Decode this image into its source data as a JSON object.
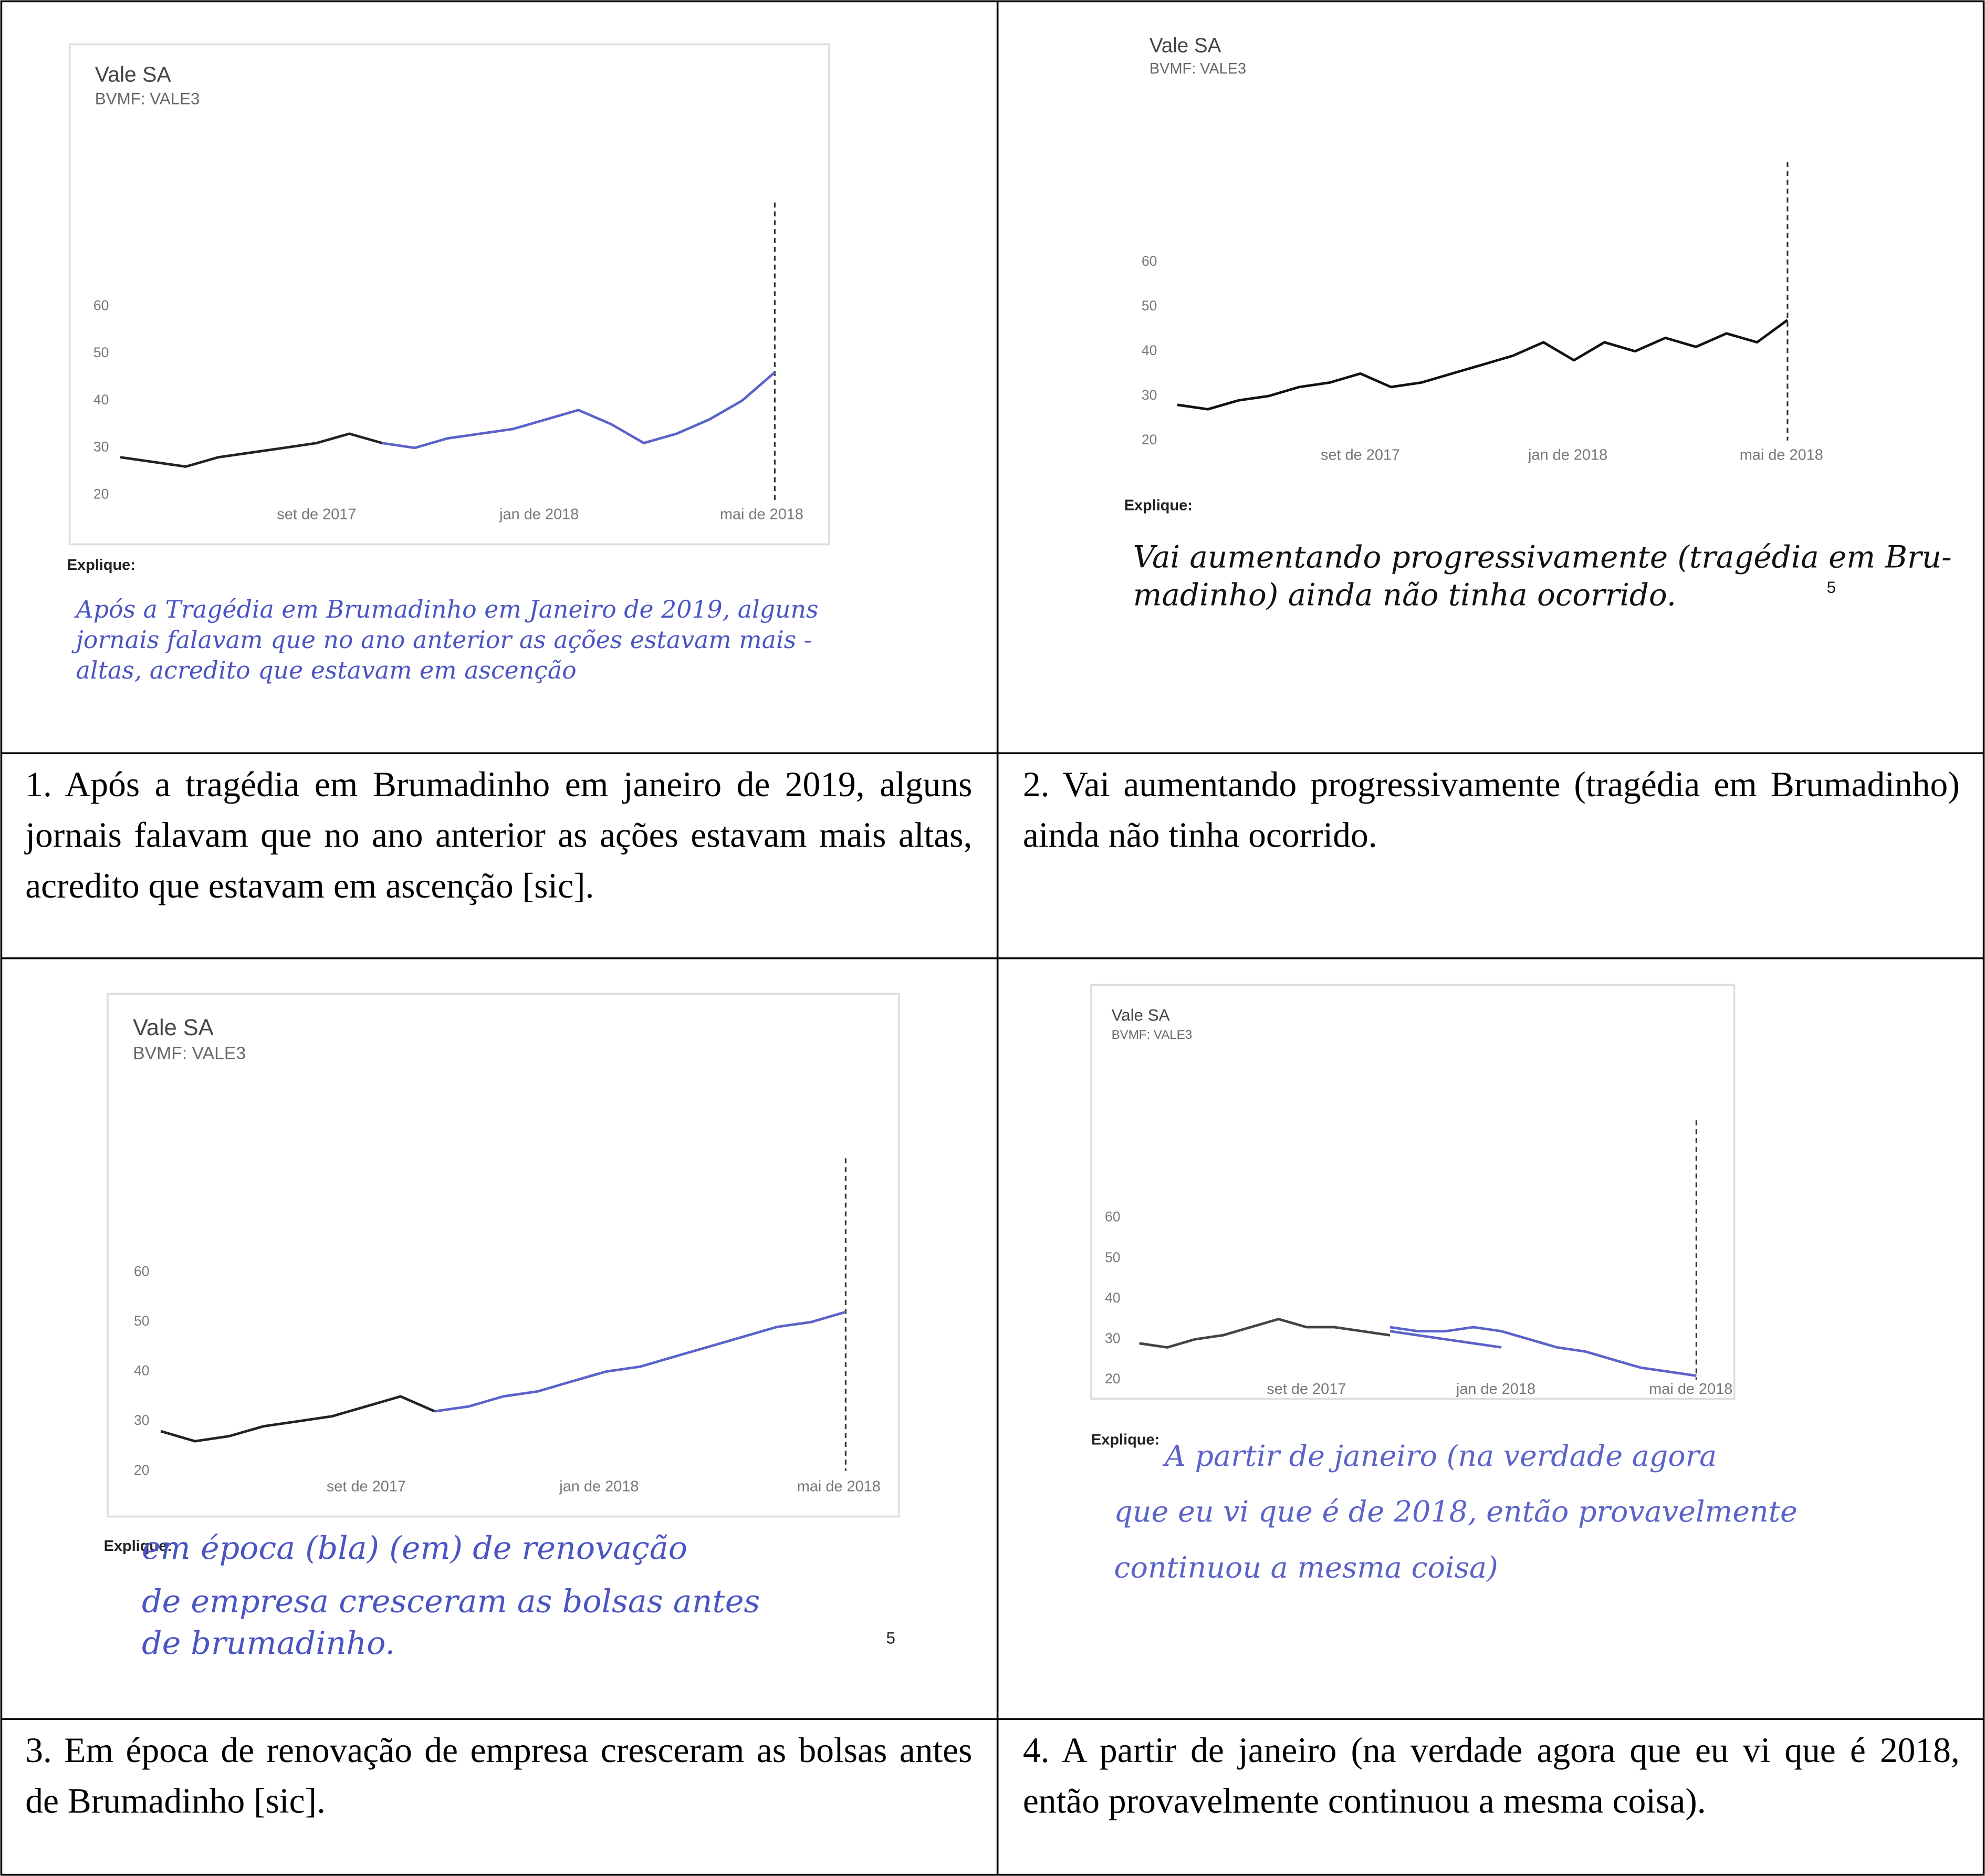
{
  "panels": [
    {
      "chart": {
        "type": "line",
        "title": "Vale SA",
        "subtitle": "BVMF: VALE3",
        "ylim": [
          20,
          60
        ],
        "yticks": [
          60,
          50,
          40,
          30,
          20
        ],
        "xlabels": [
          "set de 2017",
          "jan de 2018",
          "mai de 2018"
        ],
        "series": [
          {
            "color": "#222222",
            "values": [
              28,
              27,
              26,
              28,
              29,
              30,
              31,
              33,
              31,
              null,
              null,
              null,
              null,
              null,
              null,
              null,
              null,
              null,
              null,
              null,
              null
            ]
          },
          {
            "color": "#5b63c9",
            "values": [
              null,
              null,
              null,
              null,
              null,
              null,
              null,
              null,
              31,
              30,
              32,
              33,
              34,
              36,
              38,
              35,
              31,
              33,
              36,
              40,
              46
            ]
          }
        ]
      },
      "explain_label": "Explique:",
      "handwriting": [
        "Após a Tragédia em Brumadinho em Janeiro de 2019, alguns",
        "jornais falavam que no ano anterior as ações estavam mais -",
        "altas, acredito que estavam em ascenção"
      ],
      "caption": "1. Após a tragédia em Brumadinho em janeiro de 2019, alguns jornais falavam que no ano anterior as ações estavam mais altas, acredito que estavam em ascenção [sic]."
    },
    {
      "chart": {
        "type": "line",
        "title": "Vale SA",
        "subtitle": "BVMF: VALE3",
        "ylim": [
          20,
          60
        ],
        "yticks": [
          60,
          50,
          40,
          30,
          20
        ],
        "xlabels": [
          "set de 2017",
          "jan de 2018",
          "mai de 2018"
        ],
        "series": [
          {
            "color": "#111111",
            "values": [
              28,
              27,
              29,
              30,
              32,
              33,
              35,
              32,
              33,
              35,
              37,
              39,
              42,
              38,
              42,
              40,
              43,
              41,
              44,
              42,
              47
            ]
          }
        ]
      },
      "explain_label": "Explique:",
      "handwriting": [
        "Vai aumentando progressivamente (tragédia em Bru-",
        "madinho) ainda não tinha ocorrido."
      ],
      "page_number": "5",
      "caption": "2. Vai aumentando progressivamente (tragédia em Brumadinho) ainda não tinha ocorrido."
    },
    {
      "chart": {
        "type": "line",
        "title": "Vale SA",
        "subtitle": "BVMF: VALE3",
        "ylim": [
          20,
          60
        ],
        "yticks": [
          60,
          50,
          40,
          30,
          20
        ],
        "xlabels": [
          "set de 2017",
          "jan de 2018",
          "mai de 2018"
        ],
        "series": [
          {
            "color": "#222222",
            "values": [
              28,
              26,
              27,
              29,
              30,
              31,
              33,
              35,
              32,
              null,
              null,
              null,
              null,
              null,
              null,
              null,
              null,
              null,
              null,
              null,
              null
            ]
          },
          {
            "color": "#5b63c9",
            "values": [
              null,
              null,
              null,
              null,
              null,
              null,
              null,
              null,
              32,
              33,
              35,
              36,
              38,
              40,
              41,
              43,
              45,
              47,
              49,
              50,
              52
            ]
          }
        ]
      },
      "explain_label": "Explique:",
      "handwriting": [
        "em época (bla) (em) de renovação",
        "de empresa cresceram as bolsas antes",
        "de brumadinho."
      ],
      "page_number": "5",
      "caption": "3. Em época de renovação de empresa cresceram as bolsas antes de Brumadinho [sic]."
    },
    {
      "chart": {
        "type": "line",
        "title": "Vale SA",
        "subtitle": "BVMF: VALE3",
        "ylim": [
          20,
          60
        ],
        "yticks": [
          60,
          50,
          40,
          30,
          20
        ],
        "xlabels": [
          "set de 2017",
          "jan de 2018",
          "mai de 2018"
        ],
        "series": [
          {
            "color": "#444444",
            "values": [
              29,
              28,
              30,
              31,
              33,
              35,
              33,
              33,
              32,
              31,
              null,
              null,
              null,
              null,
              null,
              null,
              null,
              null,
              null,
              null,
              null
            ]
          },
          {
            "color": "#5b63c9",
            "values": [
              null,
              null,
              null,
              null,
              null,
              null,
              null,
              null,
              null,
              32,
              31,
              30,
              29,
              28,
              null,
              null,
              null,
              null,
              null,
              null,
              null
            ]
          },
          {
            "color": "#5b63c9",
            "values": [
              null,
              null,
              null,
              null,
              null,
              null,
              null,
              null,
              null,
              33,
              32,
              32,
              33,
              32,
              30,
              28,
              27,
              25,
              23,
              22,
              21
            ]
          }
        ]
      },
      "explain_label": "Explique:",
      "handwriting": [
        "A partir de janeiro (na verdade agora",
        "que eu vi que é de 2018, então provavelmente",
        "continuou a mesma coisa)"
      ],
      "caption": "4. A partir de janeiro (na verdade agora que eu vi que é 2018, então provavelmente continuou a mesma coisa)."
    }
  ]
}
